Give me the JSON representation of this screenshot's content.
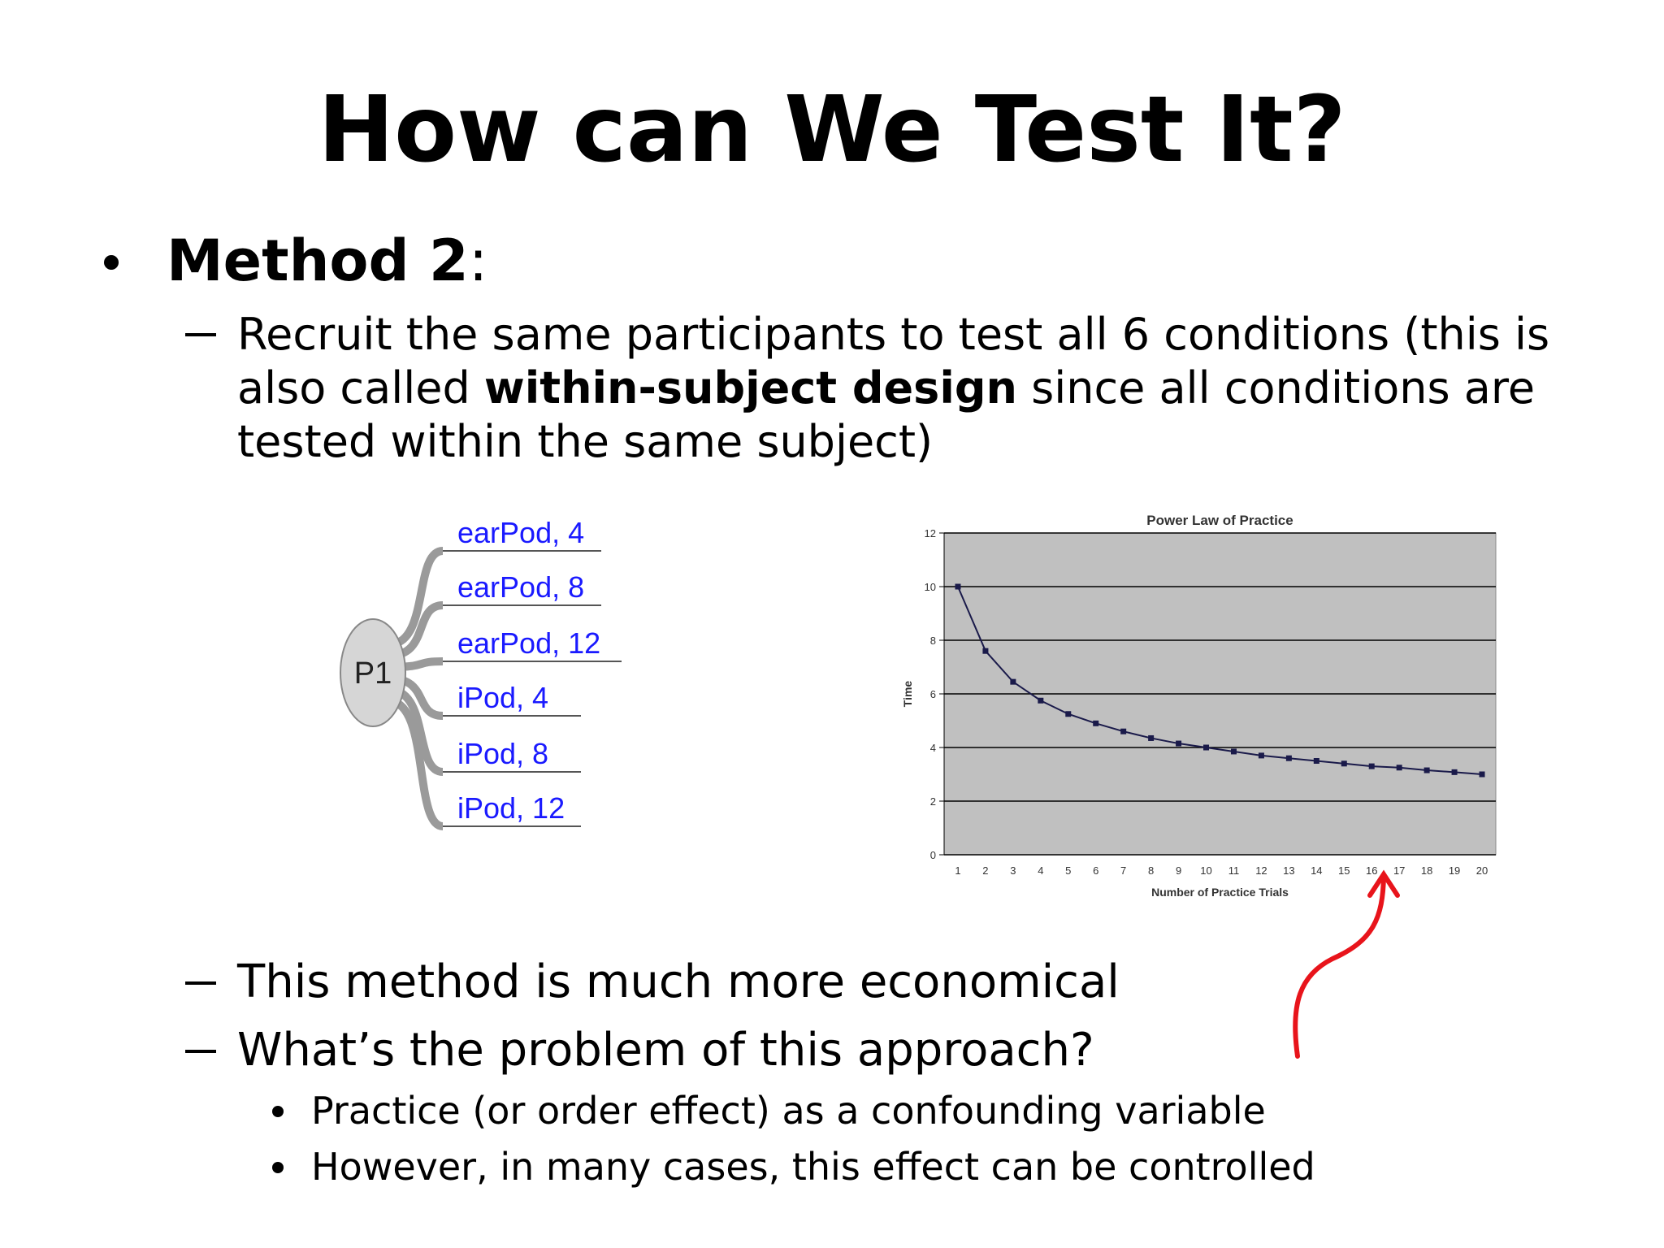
{
  "title": "How can We Test It?",
  "method_heading": [
    "Method 2",
    ":"
  ],
  "detail": [
    "Recruit the same participants to test all 6 conditions (this is also called ",
    "within-subject design",
    " since all conditions are tested within the same subject)"
  ],
  "points": [
    "This method is much more economical",
    "What’s the problem of this approach?"
  ],
  "subpoints": [
    "Practice (or order effect) as a confounding variable",
    "However, in many cases, this effect can be controlled"
  ],
  "diagram": {
    "center": "P1",
    "leaves": [
      "earPod, 4",
      "earPod, 8",
      "earPod, 12",
      "iPod, 4",
      "iPod, 8",
      "iPod, 12"
    ]
  },
  "chart_data": {
    "type": "line",
    "title": "Power Law of Practice",
    "x_label": "Number of Practice Trials",
    "y_label": "Time",
    "categories": [
      "1",
      "2",
      "3",
      "4",
      "5",
      "6",
      "7",
      "8",
      "9",
      "10",
      "11",
      "12",
      "13",
      "14",
      "15",
      "16",
      "17",
      "18",
      "19",
      "20"
    ],
    "values": [
      10,
      7.6,
      6.45,
      5.75,
      5.25,
      4.9,
      4.6,
      4.35,
      4.15,
      4.0,
      3.85,
      3.7,
      3.6,
      3.5,
      3.4,
      3.3,
      3.25,
      3.15,
      3.08,
      3.0
    ],
    "color": "#1a1a4a",
    "plot_background": "#c0c0c0",
    "ylim": [
      0,
      12
    ],
    "yticks": [
      0,
      2,
      4,
      6,
      8,
      10,
      12
    ],
    "grid": true
  }
}
